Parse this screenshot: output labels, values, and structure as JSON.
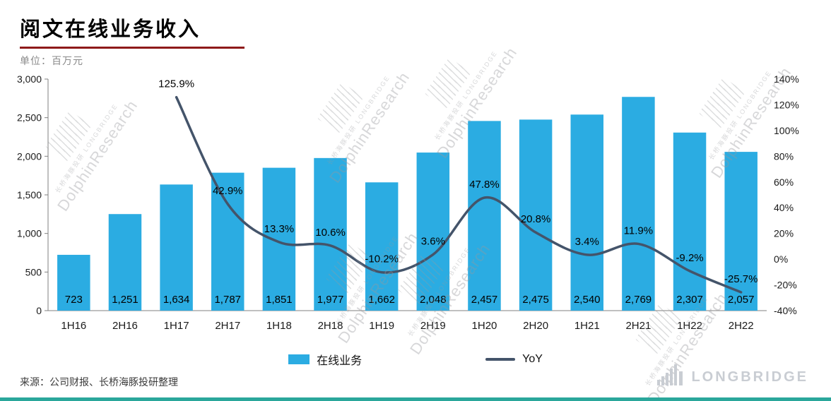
{
  "page": {
    "title": "阅文在线业务收入",
    "subtitle": "单位：百万元",
    "source": "来源：公司财报、长桥海豚投研整理",
    "watermark": {
      "line1": "长桥海豚投研 LONGBRIDGE",
      "line2": "DolphinResearch"
    },
    "logo_text": "LONGBRIDGE"
  },
  "colors": {
    "bar": "#2BACE2",
    "line": "#44546A",
    "accent_teal": "#2AA79B",
    "title_underline": "#8E1919",
    "watermark": "#97999d",
    "logo_gray": "#C9CDD3"
  },
  "legend": [
    {
      "label": "在线业务",
      "type": "bar"
    },
    {
      "label": "YoY",
      "type": "line"
    }
  ],
  "chart_data": {
    "type": "bar+line",
    "title": "阅文在线业务收入",
    "unit": "百万元",
    "categories": [
      "1H16",
      "2H16",
      "1H17",
      "2H17",
      "1H18",
      "2H18",
      "1H19",
      "2H19",
      "1H20",
      "2H20",
      "1H21",
      "2H21",
      "1H22",
      "2H22"
    ],
    "series": [
      {
        "name": "在线业务",
        "type": "bar",
        "axis": "left",
        "values": [
          723,
          1251,
          1634,
          1787,
          1851,
          1977,
          1662,
          2048,
          2457,
          2475,
          2540,
          2769,
          2307,
          2057
        ],
        "labels": [
          "723",
          "1,251",
          "1,634",
          "1,787",
          "1,851",
          "1,977",
          "1,662",
          "2,048",
          "2,457",
          "2,475",
          "2,540",
          "2,769",
          "2,307",
          "2,057"
        ]
      },
      {
        "name": "YoY",
        "type": "line",
        "axis": "right",
        "values": [
          null,
          null,
          125.9,
          42.9,
          13.3,
          10.6,
          -10.2,
          3.6,
          47.8,
          20.8,
          3.4,
          11.9,
          -9.2,
          -25.7
        ],
        "labels": [
          "",
          "",
          "125.9%",
          "42.9%",
          "13.3%",
          "10.6%",
          "-10.2%",
          "3.6%",
          "47.8%",
          "20.8%",
          "3.4%",
          "11.9%",
          "-9.2%",
          "-25.7%"
        ]
      }
    ],
    "left_axis": {
      "min": 0,
      "max": 3000,
      "step": 500,
      "ticks": [
        "0",
        "500",
        "1,000",
        "1,500",
        "2,000",
        "2,500",
        "3,000"
      ]
    },
    "right_axis": {
      "min": -40,
      "max": 140,
      "step": 20,
      "ticks": [
        "-40%",
        "-20%",
        "0%",
        "20%",
        "40%",
        "60%",
        "80%",
        "100%",
        "120%",
        "140%"
      ]
    },
    "grid": false,
    "legend_position": "bottom"
  }
}
